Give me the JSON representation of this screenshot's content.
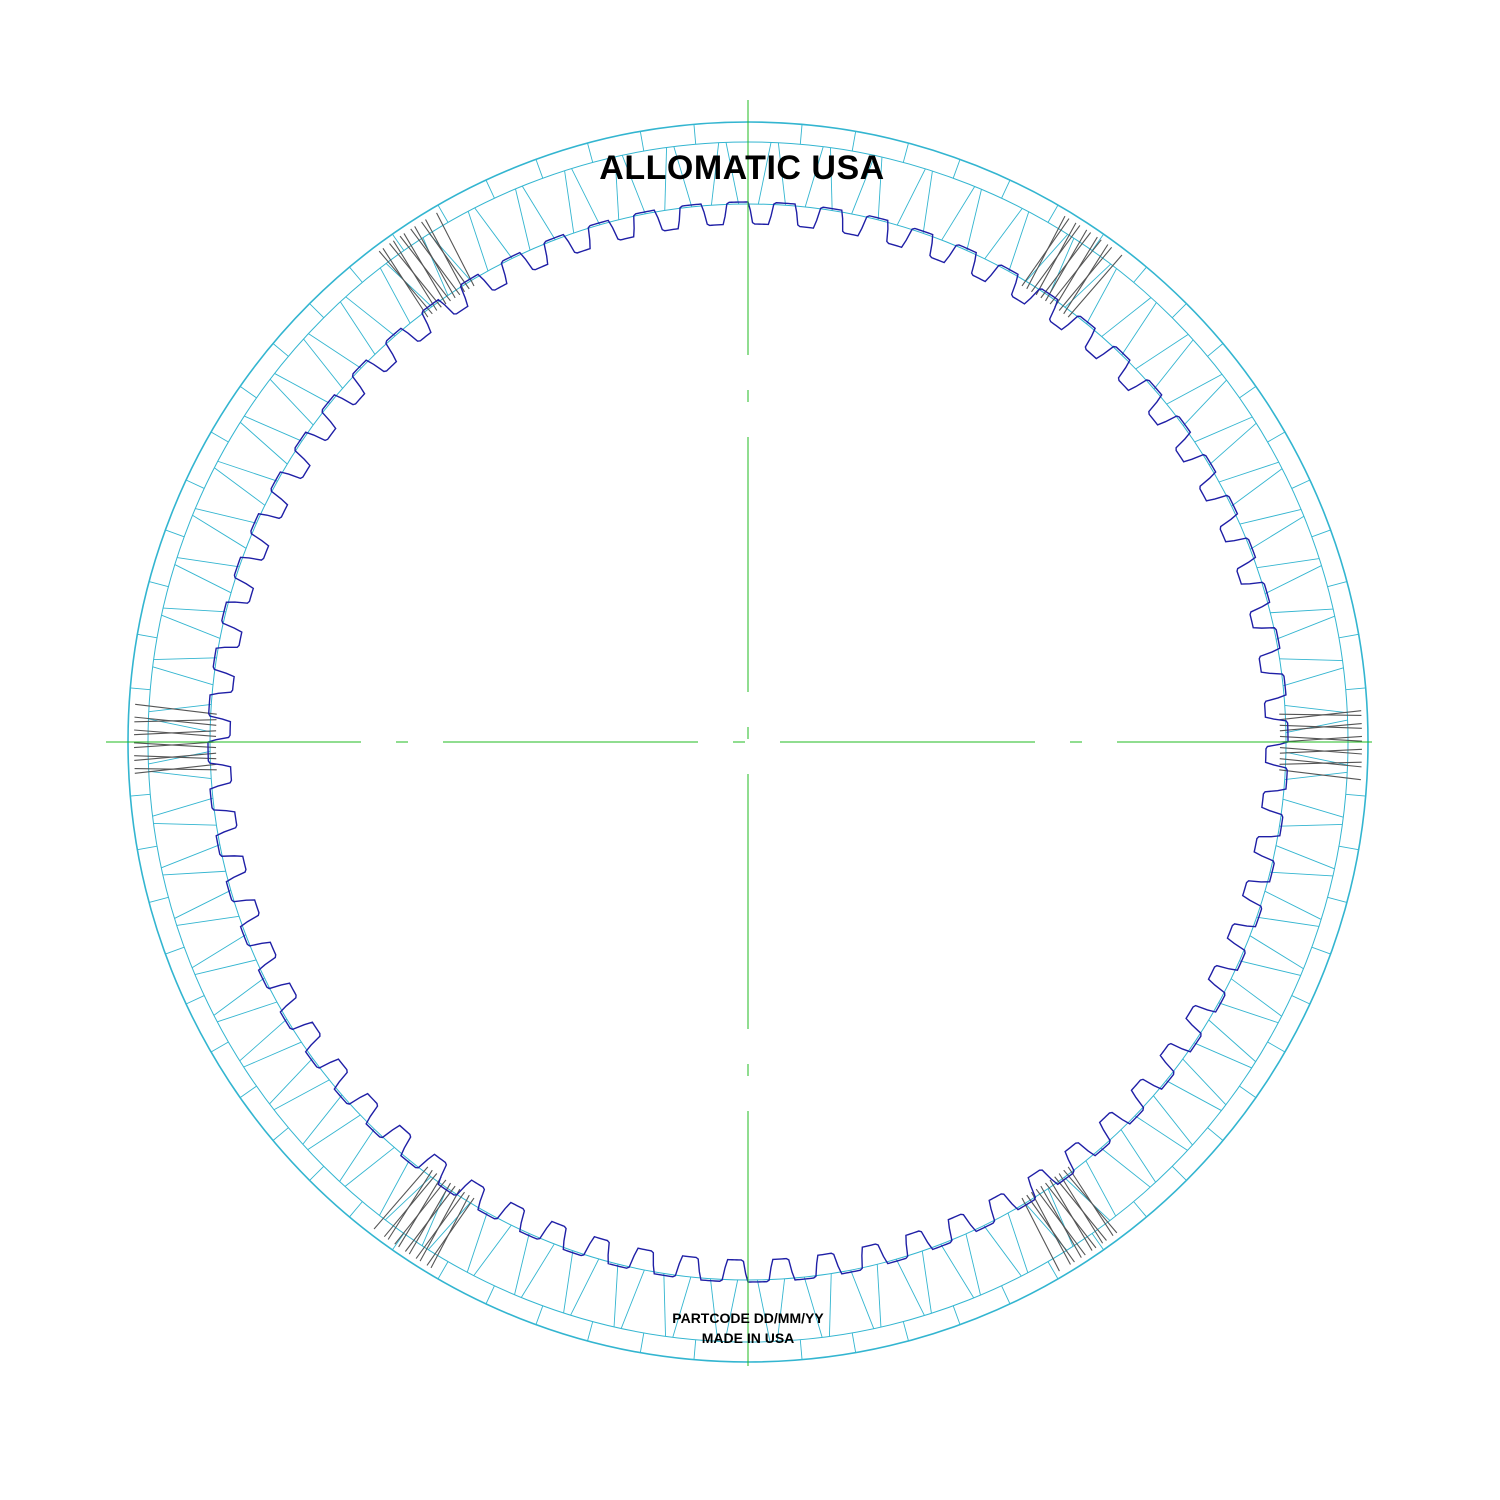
{
  "brand_text": "ALLOMATIC USA",
  "stamp_line_1": "PARTCODE DD/MM/YY",
  "stamp_line_2": "MADE IN USA",
  "colors": {
    "background": "#ffffff",
    "friction_outline": "#33b5d0",
    "inner_spline": "#1f1fa6",
    "centerline": "#22bb22",
    "oil_grooves": "#555555",
    "text": "#000000"
  },
  "drawing": {
    "subject": "friction plate with internal spline teeth",
    "spline_tooth_count": 72,
    "friction_segment_count": 72,
    "grooved_regions": [
      "top-left",
      "top-right",
      "left",
      "right",
      "bottom-left",
      "bottom-right"
    ],
    "grooves_per_region": 11,
    "centerlines": "horizontal and vertical, dash-dot"
  }
}
